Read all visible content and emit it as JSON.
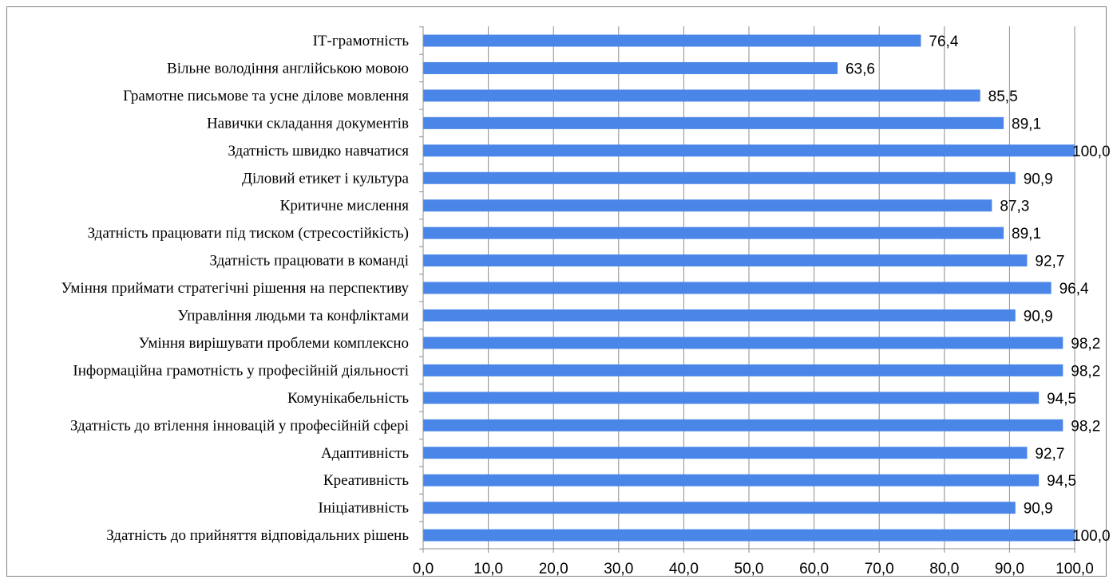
{
  "chart_data": {
    "type": "bar",
    "orientation": "horizontal",
    "title": "",
    "xlabel": "",
    "ylabel": "",
    "xlim": [
      0,
      100
    ],
    "grid": true,
    "legend": "none",
    "bar_color": "#4A86E8",
    "categories": [
      "ІТ-грамотність",
      "Вільне володіння англійською мовою",
      "Грамотне письмове та усне ділове мовлення",
      "Навички складання документів",
      "Здатність швидко навчатися",
      "Діловий етикет і культура",
      "Критичне мислення",
      "Здатність працювати під тиском (стресостійкість)",
      "Здатність працювати в команді",
      "Уміння приймати стратегічні рішення на перспективу",
      "Управління людьми та конфліктами",
      "Уміння вирішувати проблеми комплексно",
      "Інформаційна грамотність у професійній діяльності",
      "Комунікабельність",
      "Здатність до втілення інновацій у професійній сфері",
      "Адаптивність",
      "Креативність",
      "Ініціативність",
      "Здатність до прийняття відповідальних рішень"
    ],
    "values": [
      76.4,
      63.6,
      85.5,
      89.1,
      100.0,
      90.9,
      87.3,
      89.1,
      92.7,
      96.4,
      90.9,
      98.2,
      98.2,
      94.5,
      98.2,
      92.7,
      94.5,
      90.9,
      100.0
    ],
    "value_labels": [
      "76,4",
      "63,6",
      "85,5",
      "89,1",
      "100,0",
      "90,9",
      "87,3",
      "89,1",
      "92,7",
      "96,4",
      "90,9",
      "98,2",
      "98,2",
      "94,5",
      "98,2",
      "92,7",
      "94,5",
      "90,9",
      "100,0"
    ],
    "x_ticks": [
      0,
      10,
      20,
      30,
      40,
      50,
      60,
      70,
      80,
      90,
      100
    ],
    "x_tick_labels": [
      "0,0",
      "10,0",
      "20,0",
      "30,0",
      "40,0",
      "50,0",
      "60,0",
      "70,0",
      "80,0",
      "90,0",
      "100,0"
    ]
  }
}
